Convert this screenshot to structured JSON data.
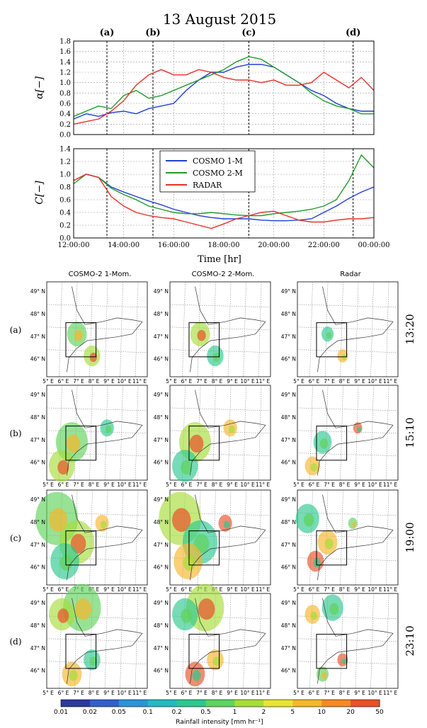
{
  "figure": {
    "title": "13 August 2015",
    "event_labels": [
      "(a)",
      "(b)",
      "(c)",
      "(d)"
    ],
    "event_times": [
      "13:20",
      "15:10",
      "19:00",
      "23:10"
    ]
  },
  "chart_data": [
    {
      "type": "line",
      "panel": "alpha",
      "ylabel": "α[−]",
      "ylim": [
        0,
        1.8
      ],
      "yticks": [
        "0.0",
        "0.2",
        "0.4",
        "0.6",
        "0.8",
        "1.0",
        "1.2",
        "1.4",
        "1.6",
        "1.8"
      ],
      "xlim_hours": [
        12,
        24
      ],
      "grid": true,
      "event_lines_hours": [
        13.33,
        15.17,
        19.0,
        23.17
      ],
      "series": [
        {
          "name": "COSMO 1-M",
          "color": "#1f3fd6",
          "x": [
            12,
            12.5,
            13,
            13.5,
            14,
            14.5,
            15,
            15.5,
            16,
            16.5,
            17,
            17.5,
            18,
            18.5,
            19,
            19.5,
            20,
            20.5,
            21,
            21.5,
            22,
            22.5,
            23,
            23.5,
            24
          ],
          "y": [
            0.3,
            0.4,
            0.35,
            0.42,
            0.45,
            0.4,
            0.5,
            0.55,
            0.6,
            0.85,
            1.05,
            1.2,
            1.2,
            1.3,
            1.35,
            1.35,
            1.3,
            1.15,
            1.0,
            0.85,
            0.75,
            0.6,
            0.5,
            0.45,
            0.45
          ]
        },
        {
          "name": "COSMO 2-M",
          "color": "#1f9a2a",
          "x": [
            12,
            12.5,
            13,
            13.5,
            14,
            14.5,
            15,
            15.5,
            16,
            16.5,
            17,
            17.5,
            18,
            18.5,
            19,
            19.5,
            20,
            20.5,
            21,
            21.5,
            22,
            22.5,
            23,
            23.5,
            24
          ],
          "y": [
            0.35,
            0.45,
            0.55,
            0.5,
            0.75,
            0.85,
            0.7,
            0.75,
            0.85,
            0.95,
            1.05,
            1.15,
            1.25,
            1.4,
            1.5,
            1.45,
            1.3,
            1.15,
            1.0,
            0.8,
            0.65,
            0.55,
            0.5,
            0.4,
            0.4
          ]
        },
        {
          "name": "RADAR",
          "color": "#e8302a",
          "x": [
            12,
            12.5,
            13,
            13.5,
            14,
            14.5,
            15,
            15.5,
            16,
            16.5,
            17,
            17.5,
            18,
            18.5,
            19,
            19.5,
            20,
            20.5,
            21,
            21.5,
            22,
            22.5,
            23,
            23.5,
            24
          ],
          "y": [
            0.2,
            0.25,
            0.3,
            0.45,
            0.65,
            0.95,
            1.15,
            1.25,
            1.15,
            1.15,
            1.25,
            1.2,
            1.1,
            1.05,
            1.05,
            1.0,
            1.05,
            0.95,
            0.95,
            1.0,
            1.2,
            1.05,
            0.9,
            1.1,
            0.85
          ]
        }
      ]
    },
    {
      "type": "line",
      "panel": "C",
      "ylabel": "C[−]",
      "xlabel": "Time [hr]",
      "ylim": [
        0,
        1.4
      ],
      "yticks": [
        "0.0",
        "0.2",
        "0.4",
        "0.6",
        "0.8",
        "1.0",
        "1.2",
        "1.4"
      ],
      "xlim_hours": [
        12,
        24
      ],
      "xticks": [
        "12:00:00",
        "14:00:00",
        "16:00:00",
        "18:00:00",
        "20:00:00",
        "22:00:00",
        "00:00:00"
      ],
      "grid": true,
      "legend": "top-left",
      "event_lines_hours": [
        13.33,
        15.17,
        19.0,
        23.17
      ],
      "series": [
        {
          "name": "COSMO 1-M",
          "color": "#1f3fd6",
          "x": [
            12,
            12.5,
            13,
            13.5,
            14,
            14.5,
            15,
            15.5,
            16,
            16.5,
            17,
            17.5,
            18,
            18.5,
            19,
            19.5,
            20,
            20.5,
            21,
            21.5,
            22,
            22.5,
            23,
            23.5,
            24
          ],
          "y": [
            0.9,
            1.0,
            0.95,
            0.8,
            0.72,
            0.65,
            0.58,
            0.52,
            0.45,
            0.4,
            0.35,
            0.32,
            0.3,
            0.3,
            0.3,
            0.28,
            0.27,
            0.27,
            0.28,
            0.3,
            0.4,
            0.5,
            0.62,
            0.72,
            0.8
          ]
        },
        {
          "name": "COSMO 2-M",
          "color": "#1f9a2a",
          "x": [
            12,
            12.5,
            13,
            13.5,
            14,
            14.5,
            15,
            15.5,
            16,
            16.5,
            17,
            17.5,
            18,
            18.5,
            19,
            19.5,
            20,
            20.5,
            21,
            21.5,
            22,
            22.5,
            23,
            23.5,
            24
          ],
          "y": [
            0.85,
            1.0,
            0.95,
            0.78,
            0.68,
            0.6,
            0.5,
            0.45,
            0.4,
            0.38,
            0.38,
            0.4,
            0.38,
            0.36,
            0.35,
            0.35,
            0.38,
            0.4,
            0.42,
            0.45,
            0.5,
            0.6,
            0.9,
            1.3,
            1.1
          ]
        },
        {
          "name": "RADAR",
          "color": "#e8302a",
          "x": [
            12,
            12.5,
            13,
            13.5,
            14,
            14.5,
            15,
            15.5,
            16,
            16.5,
            17,
            17.5,
            18,
            18.5,
            19,
            19.5,
            20,
            20.5,
            21,
            21.5,
            22,
            22.5,
            23,
            23.5,
            24
          ],
          "y": [
            0.9,
            1.0,
            0.95,
            0.65,
            0.5,
            0.4,
            0.35,
            0.32,
            0.3,
            0.25,
            0.2,
            0.15,
            0.22,
            0.3,
            0.35,
            0.4,
            0.42,
            0.35,
            0.28,
            0.25,
            0.25,
            0.28,
            0.3,
            0.3,
            0.32
          ]
        }
      ]
    }
  ],
  "maps": {
    "column_titles": [
      "COSMO-2 1-Mom.",
      "COSMO-2 2-Mom.",
      "Radar"
    ],
    "row_labels": [
      "(a)",
      "(b)",
      "(c)",
      "(d)"
    ],
    "row_times": [
      "13:20",
      "15:10",
      "19:00",
      "23:10"
    ],
    "lat_labels": [
      "49° N",
      "48° N",
      "47° N",
      "46° N"
    ],
    "lon_labels": [
      "5° E",
      "6° E",
      "7° E",
      "8° E",
      "9° E",
      "10° E",
      "11° E"
    ]
  },
  "colorbar": {
    "ticks": [
      "0.01",
      "0.02",
      "0.05",
      "0.1",
      "0.2",
      "0.5",
      "1",
      "2",
      "5",
      "10",
      "20",
      "50"
    ],
    "label": "Rainfall intensity [mm hr⁻¹]",
    "colors": [
      "#2a3b9a",
      "#2f62c8",
      "#2d93d6",
      "#25b8c6",
      "#2cc78f",
      "#5fd35a",
      "#a6dd3a",
      "#e7e533",
      "#f7b62c",
      "#f38a25",
      "#e8512a",
      "#c8202a"
    ]
  }
}
